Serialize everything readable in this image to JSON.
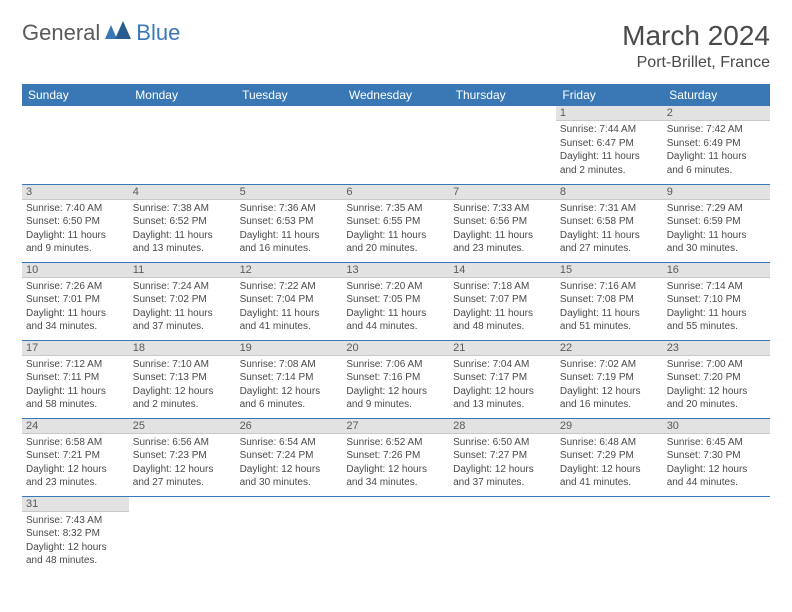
{
  "logo": {
    "part1": "General",
    "part2": "Blue"
  },
  "title": "March 2024",
  "location": "Port-Brillet, France",
  "colors": {
    "header_bg": "#3a78b5",
    "header_text": "#ffffff",
    "daynum_bg": "#e2e2e2",
    "daynum_text": "#5a5a5a",
    "body_text": "#4a4a4a",
    "border": "#3a78b5",
    "logo_gray": "#5a5a5a",
    "logo_blue": "#3a78b5"
  },
  "weekdays": [
    "Sunday",
    "Monday",
    "Tuesday",
    "Wednesday",
    "Thursday",
    "Friday",
    "Saturday"
  ],
  "first_weekday_index": 5,
  "days": [
    {
      "n": 1,
      "sunrise": "7:44 AM",
      "sunset": "6:47 PM",
      "daylight": "11 hours and 2 minutes."
    },
    {
      "n": 2,
      "sunrise": "7:42 AM",
      "sunset": "6:49 PM",
      "daylight": "11 hours and 6 minutes."
    },
    {
      "n": 3,
      "sunrise": "7:40 AM",
      "sunset": "6:50 PM",
      "daylight": "11 hours and 9 minutes."
    },
    {
      "n": 4,
      "sunrise": "7:38 AM",
      "sunset": "6:52 PM",
      "daylight": "11 hours and 13 minutes."
    },
    {
      "n": 5,
      "sunrise": "7:36 AM",
      "sunset": "6:53 PM",
      "daylight": "11 hours and 16 minutes."
    },
    {
      "n": 6,
      "sunrise": "7:35 AM",
      "sunset": "6:55 PM",
      "daylight": "11 hours and 20 minutes."
    },
    {
      "n": 7,
      "sunrise": "7:33 AM",
      "sunset": "6:56 PM",
      "daylight": "11 hours and 23 minutes."
    },
    {
      "n": 8,
      "sunrise": "7:31 AM",
      "sunset": "6:58 PM",
      "daylight": "11 hours and 27 minutes."
    },
    {
      "n": 9,
      "sunrise": "7:29 AM",
      "sunset": "6:59 PM",
      "daylight": "11 hours and 30 minutes."
    },
    {
      "n": 10,
      "sunrise": "7:26 AM",
      "sunset": "7:01 PM",
      "daylight": "11 hours and 34 minutes."
    },
    {
      "n": 11,
      "sunrise": "7:24 AM",
      "sunset": "7:02 PM",
      "daylight": "11 hours and 37 minutes."
    },
    {
      "n": 12,
      "sunrise": "7:22 AM",
      "sunset": "7:04 PM",
      "daylight": "11 hours and 41 minutes."
    },
    {
      "n": 13,
      "sunrise": "7:20 AM",
      "sunset": "7:05 PM",
      "daylight": "11 hours and 44 minutes."
    },
    {
      "n": 14,
      "sunrise": "7:18 AM",
      "sunset": "7:07 PM",
      "daylight": "11 hours and 48 minutes."
    },
    {
      "n": 15,
      "sunrise": "7:16 AM",
      "sunset": "7:08 PM",
      "daylight": "11 hours and 51 minutes."
    },
    {
      "n": 16,
      "sunrise": "7:14 AM",
      "sunset": "7:10 PM",
      "daylight": "11 hours and 55 minutes."
    },
    {
      "n": 17,
      "sunrise": "7:12 AM",
      "sunset": "7:11 PM",
      "daylight": "11 hours and 58 minutes."
    },
    {
      "n": 18,
      "sunrise": "7:10 AM",
      "sunset": "7:13 PM",
      "daylight": "12 hours and 2 minutes."
    },
    {
      "n": 19,
      "sunrise": "7:08 AM",
      "sunset": "7:14 PM",
      "daylight": "12 hours and 6 minutes."
    },
    {
      "n": 20,
      "sunrise": "7:06 AM",
      "sunset": "7:16 PM",
      "daylight": "12 hours and 9 minutes."
    },
    {
      "n": 21,
      "sunrise": "7:04 AM",
      "sunset": "7:17 PM",
      "daylight": "12 hours and 13 minutes."
    },
    {
      "n": 22,
      "sunrise": "7:02 AM",
      "sunset": "7:19 PM",
      "daylight": "12 hours and 16 minutes."
    },
    {
      "n": 23,
      "sunrise": "7:00 AM",
      "sunset": "7:20 PM",
      "daylight": "12 hours and 20 minutes."
    },
    {
      "n": 24,
      "sunrise": "6:58 AM",
      "sunset": "7:21 PM",
      "daylight": "12 hours and 23 minutes."
    },
    {
      "n": 25,
      "sunrise": "6:56 AM",
      "sunset": "7:23 PM",
      "daylight": "12 hours and 27 minutes."
    },
    {
      "n": 26,
      "sunrise": "6:54 AM",
      "sunset": "7:24 PM",
      "daylight": "12 hours and 30 minutes."
    },
    {
      "n": 27,
      "sunrise": "6:52 AM",
      "sunset": "7:26 PM",
      "daylight": "12 hours and 34 minutes."
    },
    {
      "n": 28,
      "sunrise": "6:50 AM",
      "sunset": "7:27 PM",
      "daylight": "12 hours and 37 minutes."
    },
    {
      "n": 29,
      "sunrise": "6:48 AM",
      "sunset": "7:29 PM",
      "daylight": "12 hours and 41 minutes."
    },
    {
      "n": 30,
      "sunrise": "6:45 AM",
      "sunset": "7:30 PM",
      "daylight": "12 hours and 44 minutes."
    },
    {
      "n": 31,
      "sunrise": "7:43 AM",
      "sunset": "8:32 PM",
      "daylight": "12 hours and 48 minutes."
    }
  ],
  "labels": {
    "sunrise": "Sunrise:",
    "sunset": "Sunset:",
    "daylight": "Daylight:"
  }
}
